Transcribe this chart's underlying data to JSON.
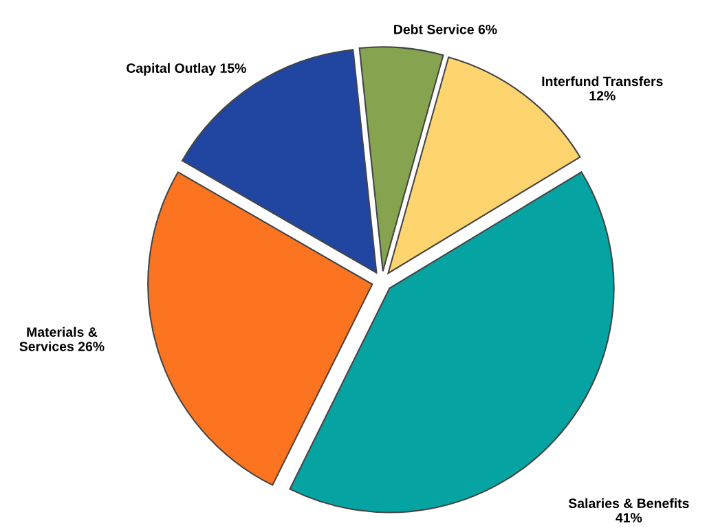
{
  "chart_data": {
    "type": "pie",
    "categories": [
      "Debt Service",
      "Interfund Transfers",
      "Salaries & Benefits",
      "Materials & Services",
      "Capital Outlay"
    ],
    "values": [
      6,
      12,
      41,
      26,
      15
    ],
    "value_labels": [
      "6%",
      "12%",
      "41%",
      "26%",
      "15%"
    ],
    "colors": [
      "#86a34f",
      "#fdd46e",
      "#06a3a3",
      "#fc7320",
      "#2146a1"
    ]
  }
}
